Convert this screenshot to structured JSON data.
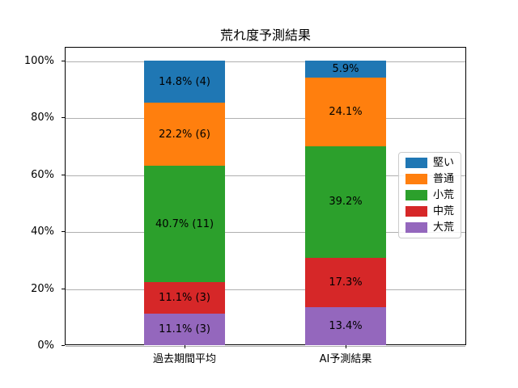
{
  "chart_data": {
    "type": "bar",
    "stacked": true,
    "title": "荒れ度予測結果",
    "categories": [
      "過去期間平均",
      "AI予測結果"
    ],
    "series": [
      {
        "name": "堅い",
        "color": "#1f77b4",
        "values": [
          14.8,
          5.9
        ],
        "labels": [
          "14.8% (4)",
          "5.9%"
        ]
      },
      {
        "name": "普通",
        "color": "#ff7f0e",
        "values": [
          22.2,
          24.1
        ],
        "labels": [
          "22.2% (6)",
          "24.1%"
        ]
      },
      {
        "name": "小荒",
        "color": "#2ca02c",
        "values": [
          40.7,
          39.2
        ],
        "labels": [
          "40.7% (11)",
          "39.2%"
        ]
      },
      {
        "name": "中荒",
        "color": "#d62728",
        "values": [
          11.1,
          17.3
        ],
        "labels": [
          "11.1% (3)",
          "17.3%"
        ]
      },
      {
        "name": "大荒",
        "color": "#9467bd",
        "values": [
          11.1,
          13.4
        ],
        "labels": [
          "11.1% (3)",
          "13.4%"
        ]
      }
    ],
    "y_ticks": [
      {
        "label": "0%",
        "value": 0
      },
      {
        "label": "20%",
        "value": 20
      },
      {
        "label": "40%",
        "value": 40
      },
      {
        "label": "60%",
        "value": 60
      },
      {
        "label": "80%",
        "value": 80
      },
      {
        "label": "100%",
        "value": 100
      }
    ],
    "ylim": [
      0,
      105
    ],
    "grid": true,
    "legend_position": "right",
    "grid_color": "#b0b0b0",
    "text_color": "#000000"
  }
}
